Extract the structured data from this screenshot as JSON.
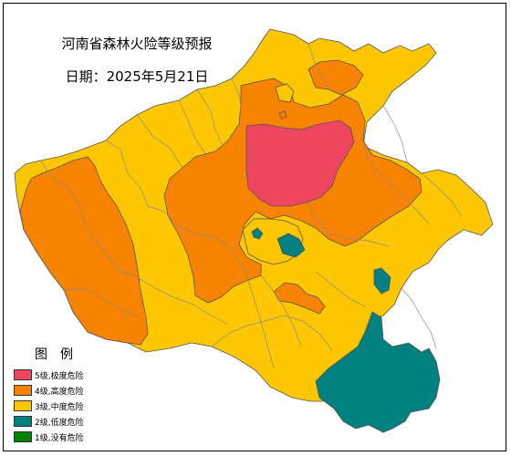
{
  "map": {
    "title": "河南省森林火险等级预报",
    "date_line": "日期：2025年5月21日"
  },
  "legend": {
    "title": "图例",
    "items": [
      {
        "label": "5级,极度危险",
        "color": "#ef4560"
      },
      {
        "label": "4级,高度危险",
        "color": "#f88300"
      },
      {
        "label": "3级,中度危险",
        "color": "#fdc700"
      },
      {
        "label": "2级,低度危险",
        "color": "#00807f"
      },
      {
        "label": "1级,没有危险",
        "color": "#028002"
      }
    ]
  }
}
